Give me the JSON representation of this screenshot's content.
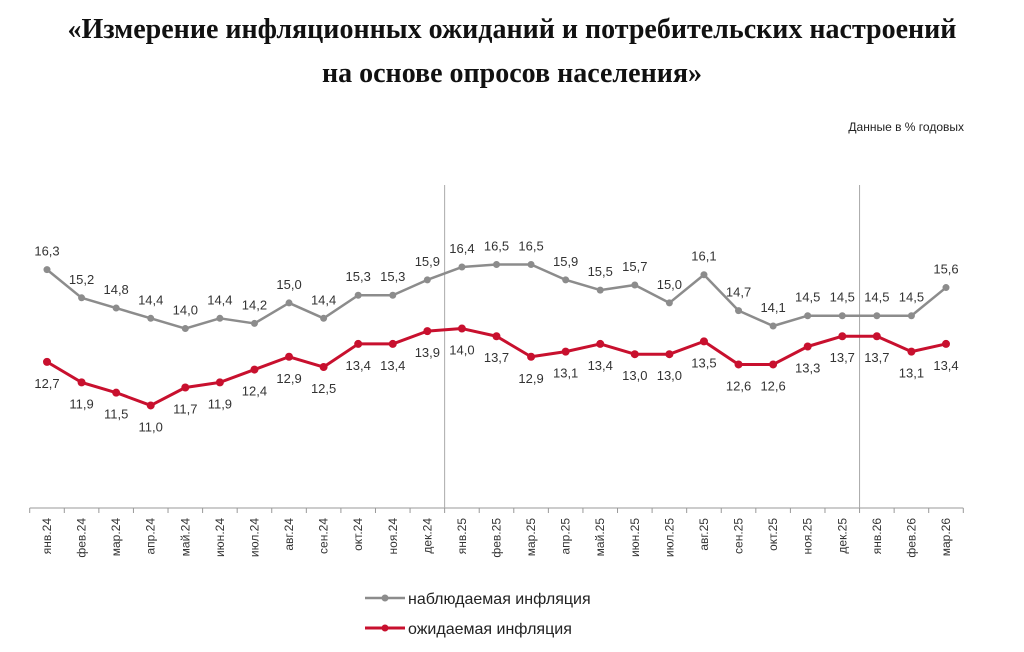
{
  "title_line1": "«Измерение инфляционных ожиданий и потребительских настроений",
  "title_line2": "на основе опросов населения»",
  "units_note": "Данные в % годовых",
  "chart_data": {
    "type": "line",
    "categories": [
      "янв.24",
      "фев.24",
      "мар.24",
      "апр.24",
      "май.24",
      "июн.24",
      "июл.24",
      "авг.24",
      "сен.24",
      "окт.24",
      "ноя.24",
      "дек.24",
      "янв.25",
      "фев.25",
      "мар.25",
      "апр.25",
      "май.25",
      "июн.25",
      "июл.25",
      "авг.25",
      "сен.25",
      "окт.25",
      "ноя.25",
      "дек.25",
      "янв.26",
      "фев.26",
      "мар.26"
    ],
    "series": [
      {
        "name": "наблюдаемая инфляция",
        "color": "#8c8c8c",
        "values": [
          16.3,
          15.2,
          14.8,
          14.4,
          14.0,
          14.4,
          14.2,
          15.0,
          14.4,
          15.3,
          15.3,
          15.9,
          16.4,
          16.5,
          16.5,
          15.9,
          15.5,
          15.7,
          15.0,
          16.1,
          14.7,
          14.1,
          14.5,
          14.5,
          14.5,
          14.5,
          15.6
        ],
        "labels": [
          "16,3",
          "15,2",
          "14,8",
          "14,4",
          "14,0",
          "14,4",
          "14,2",
          "15,0",
          "14,4",
          "15,3",
          "15,3",
          "15,9",
          "16,4",
          "16,5",
          "16,5",
          "15,9",
          "15,5",
          "15,7",
          "15,0",
          "16,1",
          "14,7",
          "14,1",
          "14,5",
          "14,5",
          "14,5",
          "14,5",
          "15,6"
        ]
      },
      {
        "name": "ожидаемая инфляция",
        "color": "#c8102e",
        "values": [
          12.7,
          11.9,
          11.5,
          11.0,
          11.7,
          11.9,
          12.4,
          12.9,
          12.5,
          13.4,
          13.4,
          13.9,
          14.0,
          13.7,
          12.9,
          13.1,
          13.4,
          13.0,
          13.0,
          13.5,
          12.6,
          12.6,
          13.3,
          13.7,
          13.7,
          13.1,
          13.4
        ],
        "labels": [
          "12,7",
          "11,9",
          "11,5",
          "11,0",
          "11,7",
          "11,9",
          "12,4",
          "12,9",
          "12,5",
          "13,4",
          "13,4",
          "13,9",
          "14,0",
          "13,7",
          "12,9",
          "13,1",
          "13,4",
          "13,0",
          "13,0",
          "13,5",
          "12,6",
          "12,6",
          "13,3",
          "13,7",
          "13,7",
          "13,1",
          "13,4"
        ]
      }
    ],
    "ylim": [
      7,
      19.6
    ],
    "year_separators_after": [
      "дек.24",
      "дек.25"
    ],
    "grid": false,
    "legend": "bottom-center"
  }
}
